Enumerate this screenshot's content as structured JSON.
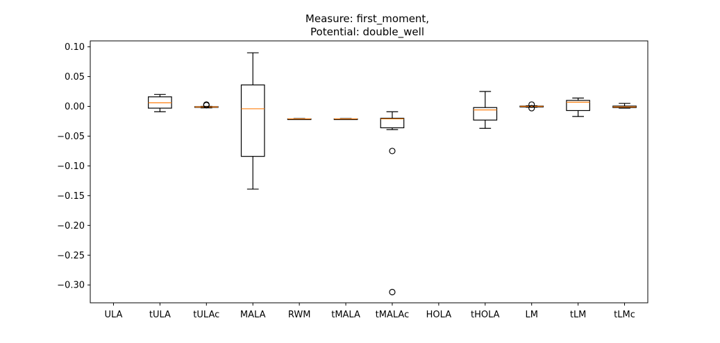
{
  "chart_data": {
    "type": "box",
    "title_lines": [
      "Measure: first_moment,",
      "Potential: double_well"
    ],
    "xlabel": "",
    "ylabel": "",
    "categories": [
      "ULA",
      "tULA",
      "tULAc",
      "MALA",
      "RWM",
      "tMALA",
      "tMALAc",
      "HOLA",
      "tHOLA",
      "LM",
      "tLM",
      "tLMc"
    ],
    "ylim": [
      -0.33,
      0.11
    ],
    "yticks": [
      0.1,
      0.05,
      0.0,
      -0.05,
      -0.1,
      -0.15,
      -0.2,
      -0.25,
      -0.3
    ],
    "ytick_labels": [
      "0.10",
      "0.05",
      "0.00",
      "−0.05",
      "−0.10",
      "−0.15",
      "−0.20",
      "−0.25",
      "−0.30"
    ],
    "grid": false,
    "box_color": "#000000",
    "median_color": "#ff7f0e",
    "boxes": [
      null,
      {
        "whislo": -0.009,
        "q1": -0.003,
        "med": 0.006,
        "q3": 0.016,
        "whishi": 0.02,
        "fliers": []
      },
      {
        "whislo": -0.0025,
        "q1": -0.0015,
        "med": -0.001,
        "q3": -0.0005,
        "whishi": 0.0,
        "fliers": [
          0.002,
          0.003
        ]
      },
      {
        "whislo": -0.139,
        "q1": -0.084,
        "med": -0.004,
        "q3": 0.036,
        "whishi": 0.09,
        "fliers": []
      },
      {
        "whislo": -0.0215,
        "q1": -0.021,
        "med": -0.021,
        "q3": -0.021,
        "whishi": -0.0205,
        "fliers": []
      },
      {
        "whislo": -0.0215,
        "q1": -0.021,
        "med": -0.021,
        "q3": -0.021,
        "whishi": -0.0205,
        "fliers": []
      },
      {
        "whislo": -0.039,
        "q1": -0.036,
        "med": -0.021,
        "q3": -0.02,
        "whishi": -0.009,
        "fliers": [
          -0.075,
          -0.312
        ]
      },
      null,
      {
        "whislo": -0.037,
        "q1": -0.023,
        "med": -0.006,
        "q3": -0.002,
        "whishi": 0.025,
        "fliers": []
      },
      {
        "whislo": -0.0015,
        "q1": -0.001,
        "med": 0.0,
        "q3": 0.0005,
        "whishi": 0.001,
        "fliers": [
          0.003,
          -0.003
        ]
      },
      {
        "whislo": -0.017,
        "q1": -0.007,
        "med": 0.007,
        "q3": 0.01,
        "whishi": 0.014,
        "fliers": []
      },
      {
        "whislo": -0.003,
        "q1": -0.002,
        "med": -0.001,
        "q3": 0.0005,
        "whishi": 0.005,
        "fliers": []
      }
    ]
  }
}
